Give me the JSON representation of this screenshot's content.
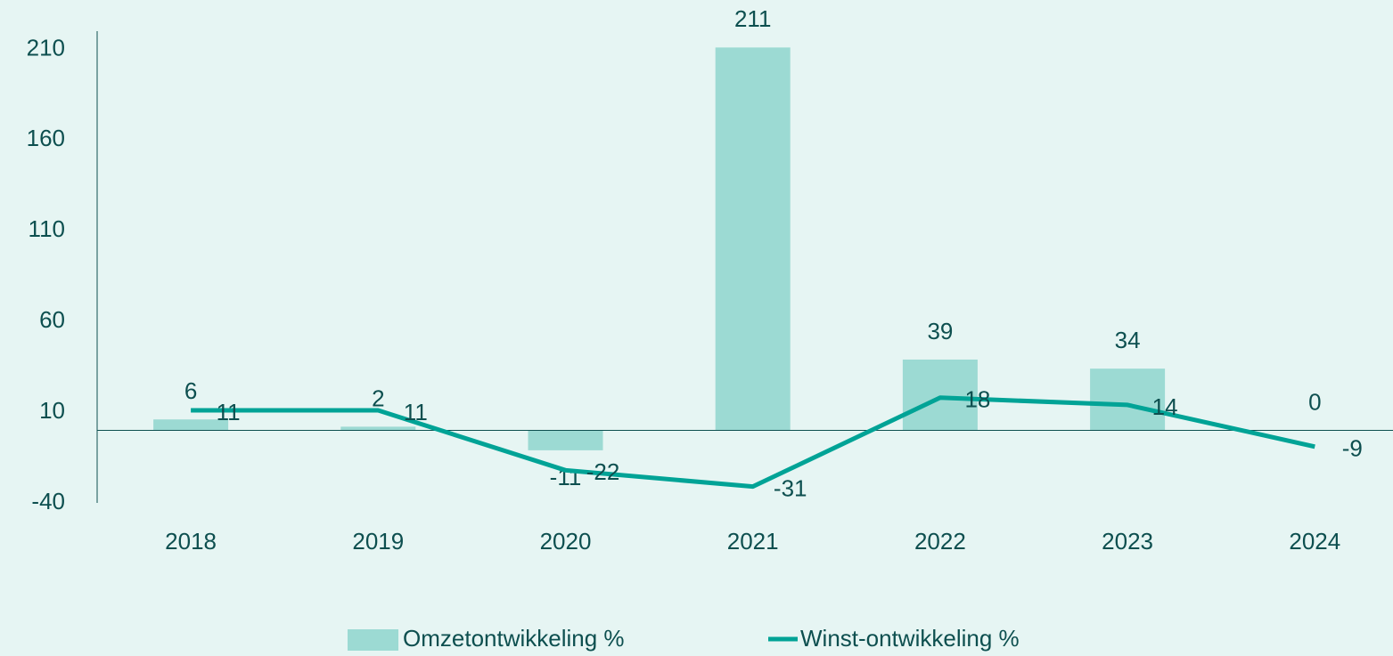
{
  "chart_data": {
    "type": "bar-line",
    "categories": [
      "2018",
      "2019",
      "2020",
      "2021",
      "2022",
      "2023",
      "2024"
    ],
    "series": [
      {
        "name": "Omzetontwikkeling %",
        "type": "bar",
        "color": "#9cdad3",
        "values": [
          6,
          2,
          -11,
          211,
          39,
          34,
          0
        ]
      },
      {
        "name": "Winst-ontwikkeling %",
        "type": "line",
        "color": "#00a396",
        "values": [
          11,
          11,
          -22,
          -31,
          18,
          14,
          -9
        ]
      }
    ],
    "ylim": [
      -40,
      220
    ],
    "yticks": [
      -40,
      10,
      60,
      110,
      160,
      210
    ],
    "legend": "bottom"
  }
}
